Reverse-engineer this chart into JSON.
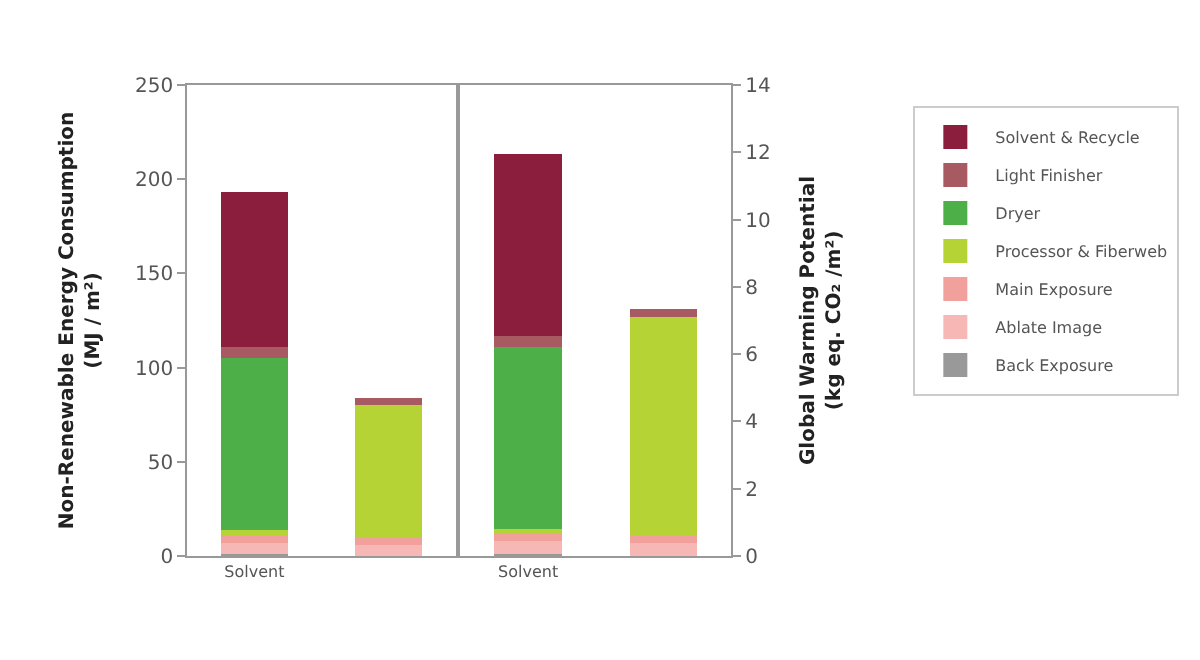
{
  "chart_data": [
    {
      "type": "bar",
      "stacked": true,
      "categories": [
        "Solvent",
        null
      ],
      "ylabel": "Non-Renewable Energy Consumption\n(MJ / m²)",
      "ylim": [
        0,
        250
      ],
      "yticks": [
        0,
        50,
        100,
        150,
        200,
        250
      ],
      "legend": "right",
      "series": [
        {
          "name": "Back Exposure",
          "color": "#999999",
          "values": [
            1,
            0
          ]
        },
        {
          "name": "Ablate Image",
          "color": "#f7b8b5",
          "values": [
            6,
            6
          ]
        },
        {
          "name": "Main Exposure",
          "color": "#f2a09c",
          "values": [
            5,
            4
          ]
        },
        {
          "name": "Processor & Fiberweb",
          "color": "#b5d334",
          "values": [
            2,
            70
          ]
        },
        {
          "name": "Dryer",
          "color": "#4caf48",
          "values": [
            91,
            0
          ]
        },
        {
          "name": "Light Finisher",
          "color": "#a85a63",
          "values": [
            6,
            4
          ]
        },
        {
          "name": "Solvent & Recycle",
          "color": "#8b1e3c",
          "values": [
            82,
            0
          ]
        }
      ]
    },
    {
      "type": "bar",
      "stacked": true,
      "categories": [
        "Solvent",
        null
      ],
      "y2label": "Global Warming Potential\n(kg eq. CO₂ /m²)",
      "y2lim": [
        0,
        14
      ],
      "y2ticks": [
        0,
        2,
        4,
        6,
        8,
        10,
        12,
        14
      ],
      "series": [
        {
          "color": "#999999",
          "axis": "y2",
          "values": [
            0.05,
            0
          ]
        },
        {
          "color": "#f7b8b5",
          "axis": "y2",
          "values": [
            0.4,
            0.4
          ]
        },
        {
          "color": "#f2a09c",
          "axis": "y2",
          "values": [
            0.25,
            0.2
          ]
        },
        {
          "color": "#b5d334",
          "axis": "y2",
          "values": [
            0.1,
            6.5
          ]
        },
        {
          "color": "#4caf48",
          "axis": "y2",
          "values": [
            5.4,
            0
          ]
        },
        {
          "color": "#a85a63",
          "axis": "y2",
          "values": [
            0.35,
            0.25
          ]
        },
        {
          "color": "#8b1e3c",
          "axis": "y2",
          "values": [
            5.4,
            0
          ]
        }
      ]
    }
  ]
}
